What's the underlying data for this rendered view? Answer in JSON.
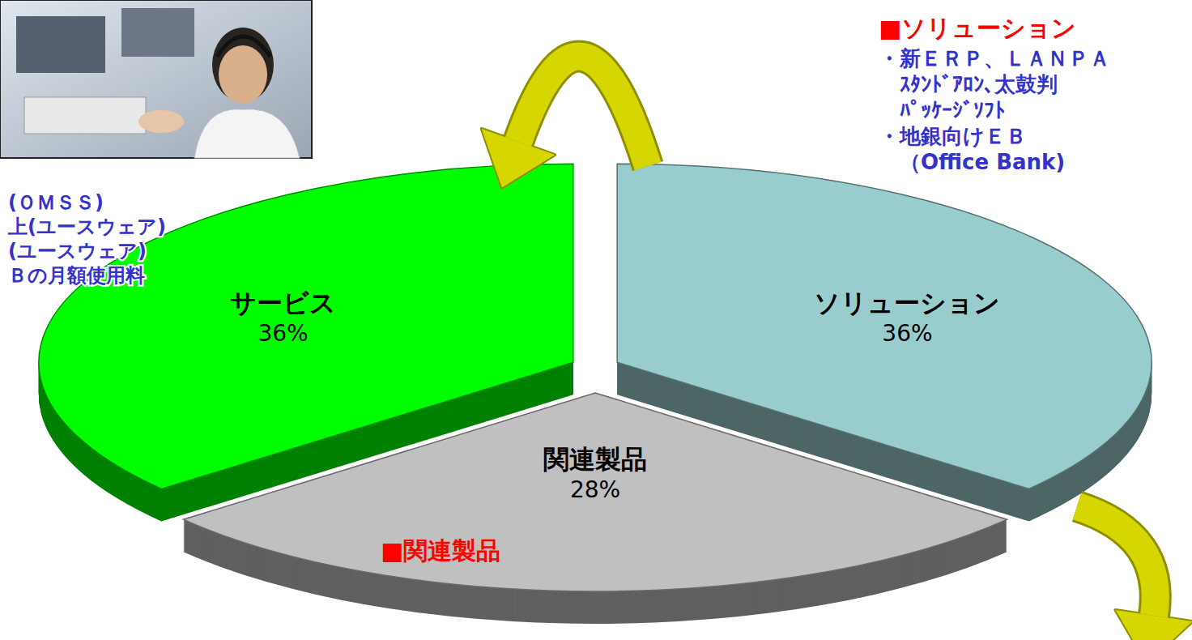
{
  "chart_data": {
    "type": "pie",
    "categories": [
      "ソリューション",
      "関連製品",
      "サービス"
    ],
    "values": [
      36,
      28,
      36
    ],
    "value_labels": [
      "36%",
      "28%",
      "36%"
    ],
    "colors": [
      "#99cccc",
      "#c0c0c0",
      "#00ff00"
    ],
    "data_labels": true,
    "annotations": [
      {
        "lines": [
          "(ＯＭＳＳ)",
          "上(ユースウェア)",
          "(ユースウェア)",
          "Ｂの月額使用料"
        ]
      },
      {
        "heading": "■ソリューション",
        "lines": [
          "・新ＥＲＰ、ＬＡＮＰＡ",
          "ｽﾀﾝﾄﾞｱﾛﾝ、太鼓判",
          "ﾊﾟｯｹｰｼﾞｿﾌﾄ",
          "・地銀向けＥＢ",
          "（Office Bank)"
        ]
      },
      {
        "heading": "■関連製品"
      }
    ]
  }
}
